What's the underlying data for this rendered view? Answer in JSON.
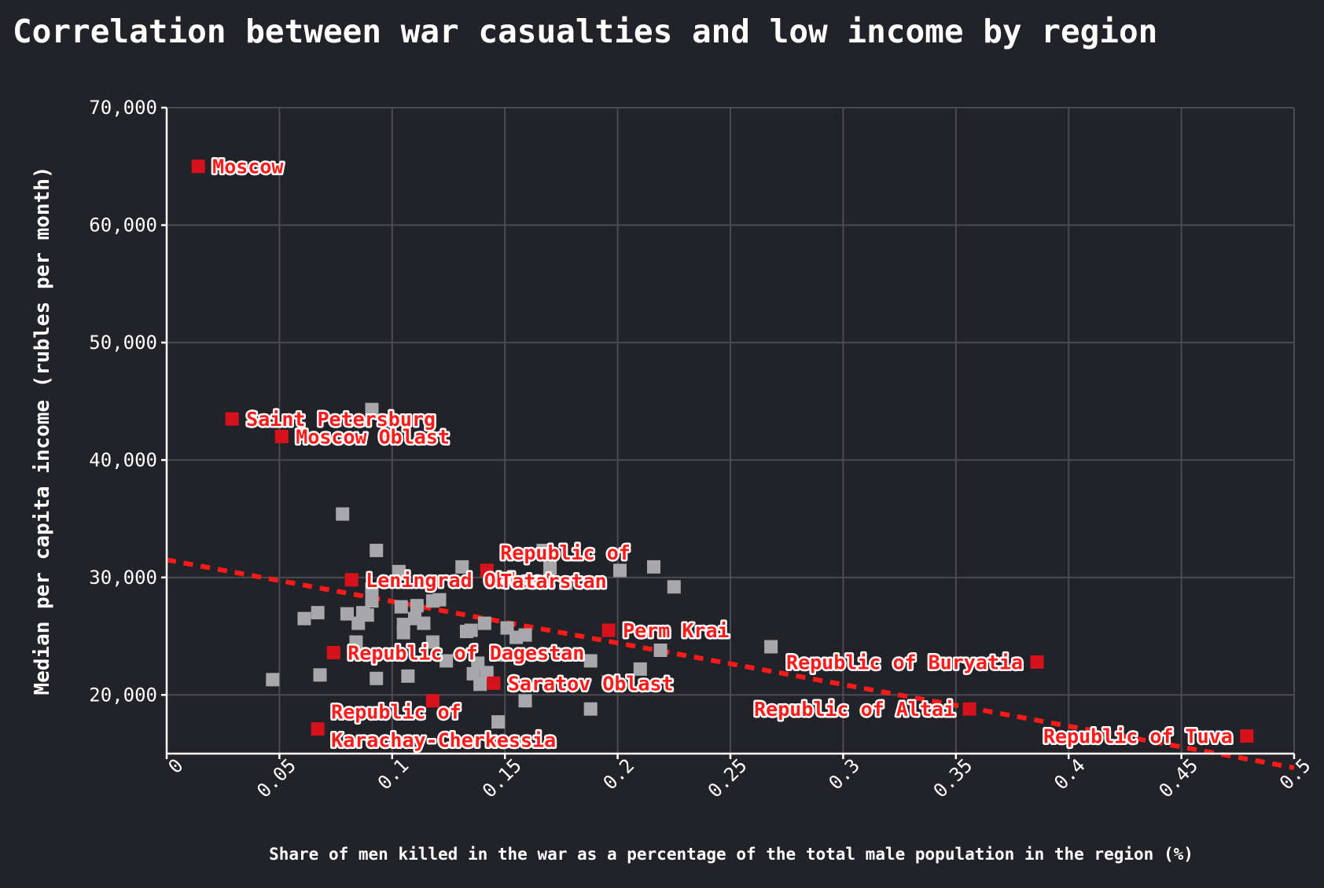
{
  "chart_data": {
    "type": "scatter",
    "title": "Correlation between war casualties and low income by region",
    "xlabel": "Share of men killed in the war as a percentage of the total male population in the region (%)",
    "ylabel": "Median per capita income (rubles per month)",
    "xlim": [
      0,
      0.5
    ],
    "ylim": [
      15000,
      70000
    ],
    "x_ticks": [
      0,
      0.05,
      0.1,
      0.15,
      0.2,
      0.25,
      0.3,
      0.35,
      0.4,
      0.45,
      0.5
    ],
    "x_tick_labels": [
      "0",
      "0.05",
      "0.1",
      "0.15",
      "0.2",
      "0.25",
      "0.3",
      "0.35",
      "0.4",
      "0.45",
      "0.5"
    ],
    "y_ticks": [
      20000,
      30000,
      40000,
      50000,
      60000,
      70000
    ],
    "y_tick_labels": [
      "20,000",
      "30,000",
      "40,000",
      "50,000",
      "60,000",
      "70,000"
    ],
    "grid": true,
    "trendline": {
      "x": [
        0,
        0.5
      ],
      "y": [
        31500,
        13800
      ]
    },
    "highlighted": [
      {
        "name": "Moscow",
        "x": 0.014,
        "y": 65000
      },
      {
        "name": "Saint Petersburg",
        "x": 0.029,
        "y": 43500
      },
      {
        "name": "Moscow Oblast",
        "x": 0.051,
        "y": 42000
      },
      {
        "name": "Leningrad Oblast",
        "x": 0.082,
        "y": 29800
      },
      {
        "name": "Republic of Dagestan",
        "x": 0.074,
        "y": 23600
      },
      {
        "name": "Republic of Karachay-Cherkessia",
        "x": 0.067,
        "y": 17100
      },
      {
        "name": "Republic of Tatarstan",
        "x": 0.142,
        "y": 30600
      },
      {
        "name": "Saratov Oblast",
        "x": 0.145,
        "y": 21000
      },
      {
        "name": "Perm Krai",
        "x": 0.196,
        "y": 25500
      },
      {
        "name": "Republic of Buryatia",
        "x": 0.386,
        "y": 22800
      },
      {
        "name": "Republic of Altai",
        "x": 0.356,
        "y": 18800
      },
      {
        "name": "Republic of Tuva",
        "x": 0.479,
        "y": 16500
      },
      {
        "name": "",
        "x": 0.118,
        "y": 19500
      }
    ],
    "others": [
      {
        "x": 0.078,
        "y": 35400
      },
      {
        "x": 0.091,
        "y": 44300
      },
      {
        "x": 0.093,
        "y": 32300
      },
      {
        "x": 0.061,
        "y": 26500
      },
      {
        "x": 0.067,
        "y": 27000
      },
      {
        "x": 0.08,
        "y": 26900
      },
      {
        "x": 0.085,
        "y": 26100
      },
      {
        "x": 0.087,
        "y": 27000
      },
      {
        "x": 0.089,
        "y": 26800
      },
      {
        "x": 0.091,
        "y": 28000
      },
      {
        "x": 0.091,
        "y": 29000
      },
      {
        "x": 0.103,
        "y": 30500
      },
      {
        "x": 0.104,
        "y": 27500
      },
      {
        "x": 0.105,
        "y": 26000
      },
      {
        "x": 0.105,
        "y": 25300
      },
      {
        "x": 0.11,
        "y": 26500
      },
      {
        "x": 0.111,
        "y": 27600
      },
      {
        "x": 0.114,
        "y": 26100
      },
      {
        "x": 0.118,
        "y": 24500
      },
      {
        "x": 0.118,
        "y": 28000
      },
      {
        "x": 0.121,
        "y": 28100
      },
      {
        "x": 0.124,
        "y": 22900
      },
      {
        "x": 0.131,
        "y": 30900
      },
      {
        "x": 0.133,
        "y": 25400
      },
      {
        "x": 0.135,
        "y": 25500
      },
      {
        "x": 0.136,
        "y": 21800
      },
      {
        "x": 0.138,
        "y": 22700
      },
      {
        "x": 0.139,
        "y": 20900
      },
      {
        "x": 0.141,
        "y": 26100
      },
      {
        "x": 0.142,
        "y": 21900
      },
      {
        "x": 0.147,
        "y": 17700
      },
      {
        "x": 0.15,
        "y": 23400
      },
      {
        "x": 0.151,
        "y": 25700
      },
      {
        "x": 0.155,
        "y": 24900
      },
      {
        "x": 0.159,
        "y": 19500
      },
      {
        "x": 0.159,
        "y": 25100
      },
      {
        "x": 0.167,
        "y": 32300
      },
      {
        "x": 0.17,
        "y": 30800
      },
      {
        "x": 0.177,
        "y": 29500
      },
      {
        "x": 0.188,
        "y": 22900
      },
      {
        "x": 0.188,
        "y": 18800
      },
      {
        "x": 0.196,
        "y": 21100
      },
      {
        "x": 0.201,
        "y": 30600
      },
      {
        "x": 0.21,
        "y": 22200
      },
      {
        "x": 0.216,
        "y": 30900
      },
      {
        "x": 0.219,
        "y": 23800
      },
      {
        "x": 0.225,
        "y": 29200
      },
      {
        "x": 0.268,
        "y": 24100
      },
      {
        "x": 0.047,
        "y": 21300
      },
      {
        "x": 0.068,
        "y": 21700
      },
      {
        "x": 0.093,
        "y": 21400
      },
      {
        "x": 0.107,
        "y": 21600
      },
      {
        "x": 0.084,
        "y": 24500
      }
    ]
  }
}
